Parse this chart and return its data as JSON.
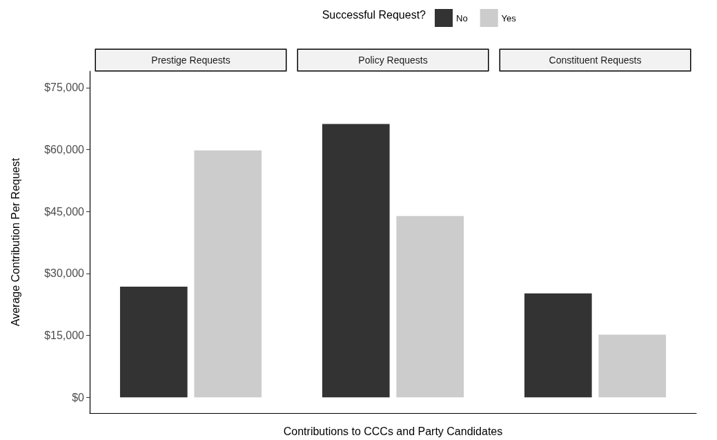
{
  "chart_data": {
    "type": "bar",
    "xlabel": "Contributions to CCCs and Party Candidates",
    "ylabel": "Average Contribution Per Request",
    "legend_title": "Successful Request?",
    "legend": "top",
    "grid": false,
    "categories": [
      "Prestige Requests",
      "Policy Requests",
      "Constituent Requests"
    ],
    "series": [
      {
        "name": "No",
        "color": "#333333",
        "values": [
          26800,
          66200,
          25200
        ]
      },
      {
        "name": "Yes",
        "color": "#cccccc",
        "values": [
          59800,
          43900,
          15200
        ]
      }
    ],
    "ylim": [
      -3800,
      79000
    ],
    "yticks": [
      {
        "value": 0,
        "label": "$0"
      },
      {
        "value": 15000,
        "label": "$15,000"
      },
      {
        "value": 30000,
        "label": "$30,000"
      },
      {
        "value": 45000,
        "label": "$45,000"
      },
      {
        "value": 60000,
        "label": "$60,000"
      },
      {
        "value": 75000,
        "label": "$75,000"
      }
    ]
  }
}
